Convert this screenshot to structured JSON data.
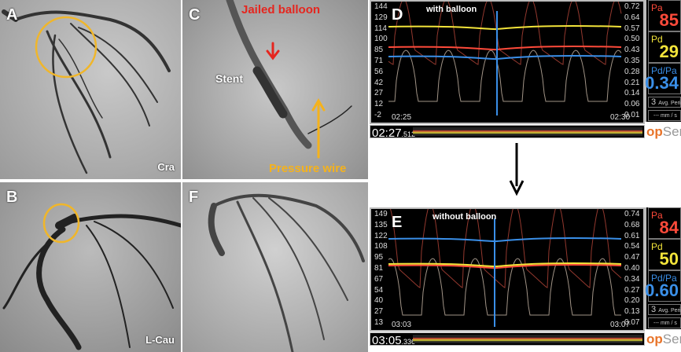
{
  "panels": {
    "A": {
      "label": "A",
      "view": "Cra"
    },
    "B": {
      "label": "B",
      "view": "L-Cau"
    },
    "C": {
      "label": "C",
      "jailed": "Jailed balloon",
      "stent": "Stent",
      "wire": "Pressure wire"
    },
    "F": {
      "label": "F"
    }
  },
  "colors": {
    "pa": "#ff4a3a",
    "pd": "#f3e43a",
    "ratio": "#3a8fe8",
    "circle": "#f0b62a",
    "red_arrow": "#e5261f",
    "yellow_arrow": "#f5b21c"
  },
  "monitors": [
    {
      "label": "D",
      "caption": "with balloon",
      "left_ticks": [
        "144",
        "129",
        "114",
        "100",
        "85",
        "71",
        "56",
        "42",
        "27",
        "12",
        "-2"
      ],
      "right_ticks": [
        "0.72",
        "0.64",
        "0.57",
        "0.50",
        "0.43",
        "0.35",
        "0.28",
        "0.21",
        "0.14",
        "0.06",
        "0.01"
      ],
      "t_start": "02:25",
      "t_end": "02:30",
      "time_main": "02:27",
      "time_ms": ".512",
      "pa_label": "Pa",
      "pa": "85",
      "pd_label": "Pd",
      "pd": "29",
      "ratio_label": "Pd/Pa",
      "ratio": "0.34",
      "avg": "3",
      "avg_label": "Avg. Peri",
      "speed": "--- mm / s",
      "logo_a": "op",
      "logo_b": "Sens"
    },
    {
      "label": "E",
      "caption": "without balloon",
      "left_ticks": [
        "149",
        "135",
        "122",
        "108",
        "95",
        "81",
        "67",
        "54",
        "40",
        "27",
        "13"
      ],
      "right_ticks": [
        "0.74",
        "0.68",
        "0.61",
        "0.54",
        "0.47",
        "0.40",
        "0.34",
        "0.27",
        "0.20",
        "0.13",
        "0.07"
      ],
      "t_start": "03:03",
      "t_end": "03:07",
      "time_main": "03:05",
      "time_ms": ".336",
      "pa_label": "Pa",
      "pa": "84",
      "pd_label": "Pd",
      "pd": "50",
      "ratio_label": "Pd/Pa",
      "ratio": "0.60",
      "avg": "3",
      "avg_label": "Avg. Peri",
      "speed": "--- mm / s",
      "logo_a": "op",
      "logo_b": "Sens"
    }
  ]
}
